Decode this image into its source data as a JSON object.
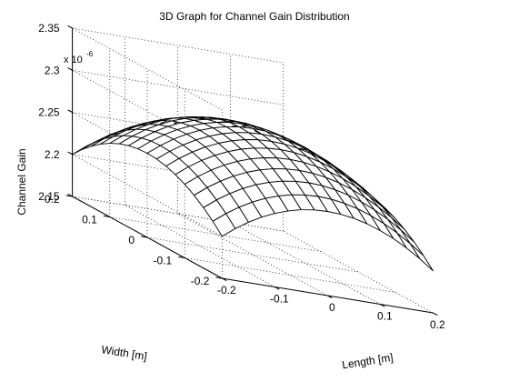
{
  "chart_data": {
    "type": "surface",
    "title": "3D Graph for Channel Gain Distribution",
    "xlabel": "Length [m]",
    "ylabel": "Width [m]",
    "zlabel": "Channel Gain",
    "z_exponent_base": "x 10",
    "z_exponent_power": "-6",
    "xlim": [
      -0.2,
      0.2
    ],
    "ylim": [
      -0.2,
      0.2
    ],
    "zlim": [
      2.15,
      2.35
    ],
    "x_ticks": [
      "-0.2",
      "-0.1",
      "0",
      "0.1",
      "0.2"
    ],
    "y_ticks": [
      "-0.2",
      "-0.1",
      "0",
      "0.1",
      "0.2"
    ],
    "z_ticks": [
      "2.15",
      "2.2",
      "2.25",
      "2.3",
      "2.35"
    ],
    "grid": true,
    "mesh_color": "#000000",
    "face_color": "#ffffff",
    "surface": {
      "x": [
        -0.2,
        -0.175,
        -0.15,
        -0.125,
        -0.1,
        -0.075,
        -0.05,
        -0.025,
        0,
        0.025,
        0.05,
        0.075,
        0.1,
        0.125,
        0.15,
        0.175,
        0.2
      ],
      "y": [
        -0.2,
        -0.175,
        -0.15,
        -0.125,
        -0.1,
        -0.075,
        -0.05,
        -0.025,
        0,
        0.025,
        0.05,
        0.075,
        0.1,
        0.125,
        0.15,
        0.175,
        0.2
      ],
      "model": "z = peak - curvature * (x^2 + y^2)",
      "peak": 2.3,
      "curvature": 1.25,
      "z_center": 2.3,
      "z_edge_mid": 2.25,
      "z_corner": 2.2
    }
  }
}
